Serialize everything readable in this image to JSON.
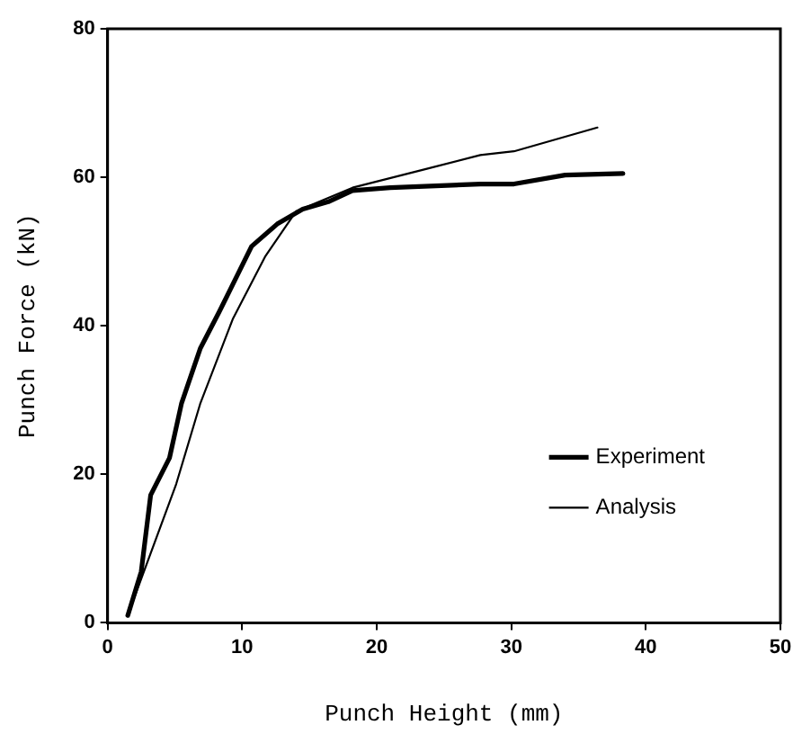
{
  "chart_data": {
    "type": "line",
    "xlabel": "Punch Height (mm)",
    "ylabel": "Punch Force (kN)",
    "xlim": [
      0,
      50
    ],
    "xticks": [
      0,
      10,
      20,
      30,
      40,
      50
    ],
    "ylim": [
      0,
      80
    ],
    "yticks": [
      0,
      20,
      40,
      60,
      80
    ],
    "grid": false,
    "legend": "bottom right",
    "marker": "none",
    "line_style": "solid",
    "series": [
      {
        "name": "Experiment",
        "color": "#000000",
        "x": [
          1.5,
          2.5,
          3.2,
          4.6,
          5.5,
          6.9,
          8.3,
          10.7,
          12.6,
          14.5,
          16.4,
          18.2,
          21,
          27.7,
          30.2,
          34,
          38.3
        ],
        "values": [
          1,
          6.9,
          17.2,
          22.2,
          29.6,
          37,
          41.9,
          50.7,
          53.7,
          55.7,
          56.7,
          58.2,
          58.6,
          59.1,
          59.1,
          60.3,
          60.5
        ]
      },
      {
        "name": "Analysis",
        "color": "#000000",
        "x": [
          1.5,
          2.7,
          5.1,
          6.9,
          9.3,
          11.7,
          14,
          18.2,
          23.4,
          27.7,
          30.2,
          36.4
        ],
        "values": [
          1,
          6.9,
          18.7,
          29.6,
          40.9,
          49.3,
          55.4,
          58.6,
          61,
          63,
          63.5,
          66.7
        ]
      }
    ]
  }
}
